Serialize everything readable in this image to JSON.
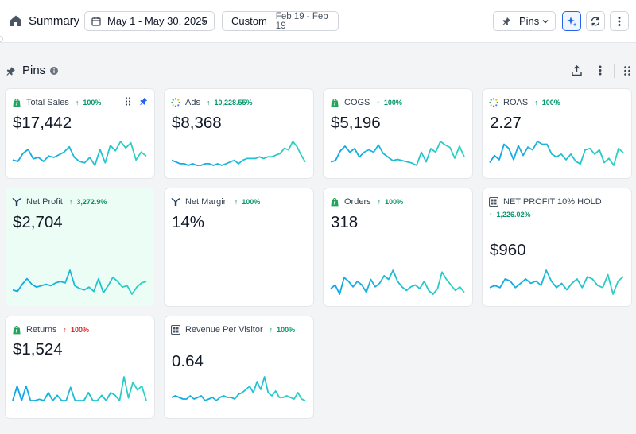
{
  "header": {
    "title": "Summary",
    "date_range": "May 1 - May 30, 2025",
    "compare_label": "Custom",
    "compare_range": "Feb 19 - Feb 19",
    "pins_label": "Pins"
  },
  "section": {
    "title": "Pins"
  },
  "colors": {
    "accent": "#2563eb",
    "up": "#059669",
    "down": "#dc2626",
    "highlight_card": "#ecfdf5",
    "spark_start": "#0ea5e9",
    "spark_end": "#2dd4bf"
  },
  "cards": [
    {
      "id": "total-sales",
      "icon": "shopify-icon",
      "name": "Total Sales",
      "change": "100%",
      "dir": "up",
      "value": "$17,442",
      "highlighted": false,
      "pinned": true,
      "series": [
        10,
        9,
        15,
        18,
        11,
        12,
        9,
        13,
        12,
        14,
        16,
        20,
        12,
        9,
        8,
        12,
        6,
        18,
        8,
        21,
        17,
        24,
        19,
        23,
        10,
        16,
        13
      ]
    },
    {
      "id": "ads",
      "icon": "ads-icon",
      "name": "Ads",
      "change": "10,228.55%",
      "dir": "up",
      "value": "$8,368",
      "highlighted": false,
      "series": [
        12,
        11,
        10,
        10,
        9,
        10,
        9,
        9,
        10,
        10,
        9,
        10,
        9,
        10,
        11,
        12,
        10,
        12,
        13,
        13,
        13,
        14,
        13,
        14,
        14,
        15,
        16,
        19,
        18,
        23,
        20,
        15,
        11
      ]
    },
    {
      "id": "cogs",
      "icon": "shopify-icon",
      "name": "COGS",
      "change": "100%",
      "dir": "up",
      "value": "$5,196",
      "highlighted": false,
      "series": [
        9,
        10,
        18,
        22,
        17,
        20,
        13,
        17,
        19,
        17,
        23,
        16,
        13,
        10,
        11,
        10,
        9,
        8,
        6,
        17,
        9,
        20,
        17,
        26,
        23,
        21,
        12,
        22,
        13
      ]
    },
    {
      "id": "roas",
      "icon": "ads-icon",
      "name": "ROAS",
      "change": "100%",
      "dir": "up",
      "value": "2.27",
      "highlighted": false,
      "series": [
        12,
        17,
        14,
        25,
        22,
        14,
        24,
        17,
        23,
        21,
        27,
        25,
        25,
        18,
        16,
        18,
        14,
        18,
        13,
        11,
        21,
        22,
        18,
        21,
        12,
        15,
        10,
        22,
        19
      ]
    },
    {
      "id": "net-profit",
      "icon": "triple-whale-icon",
      "name": "Net Profit",
      "change": "3,272.9%",
      "dir": "up",
      "value": "$2,704",
      "highlighted": true,
      "series": [
        11,
        10,
        15,
        19,
        15,
        13,
        14,
        15,
        14,
        16,
        17,
        16,
        25,
        14,
        12,
        11,
        13,
        10,
        19,
        9,
        14,
        20,
        17,
        13,
        14,
        8,
        13,
        16,
        17
      ]
    },
    {
      "id": "net-margin",
      "icon": "triple-whale-icon",
      "name": "Net Margin",
      "change": "100%",
      "dir": "up",
      "value": "14%",
      "highlighted": false,
      "series": []
    },
    {
      "id": "orders",
      "icon": "shopify-icon",
      "name": "Orders",
      "change": "100%",
      "dir": "up",
      "value": "318",
      "highlighted": false,
      "series": [
        12,
        14,
        9,
        18,
        16,
        13,
        16,
        14,
        10,
        17,
        13,
        15,
        19,
        17,
        22,
        16,
        13,
        11,
        13,
        14,
        12,
        16,
        11,
        9,
        12,
        21,
        17,
        14,
        11,
        13,
        10
      ]
    },
    {
      "id": "net-profit-hold",
      "icon": "grid-icon",
      "name": "NET PROFIT 10% HOLD",
      "change": "1,226.02%",
      "dir": "up",
      "value": "$960",
      "highlighted": false,
      "series": [
        13,
        14,
        13,
        17,
        16,
        13,
        15,
        17,
        15,
        16,
        14,
        21,
        16,
        13,
        15,
        12,
        15,
        17,
        13,
        18,
        17,
        14,
        13,
        19,
        10,
        16,
        18
      ]
    },
    {
      "id": "returns",
      "icon": "shopify-icon",
      "name": "Returns",
      "change": "100%",
      "dir": "down",
      "value": "$1,524",
      "highlighted": false,
      "series": [
        6,
        17,
        6,
        17,
        6,
        6,
        7,
        6,
        12,
        6,
        10,
        6,
        6,
        16,
        6,
        6,
        6,
        12,
        6,
        6,
        10,
        6,
        12,
        10,
        6,
        24,
        8,
        20,
        14,
        17,
        6
      ]
    },
    {
      "id": "rpv",
      "icon": "grid-icon",
      "name": "Revenue Per Visitor",
      "change": "100%",
      "dir": "up",
      "value": "0.64",
      "highlighted": false,
      "series": [
        9,
        10,
        9,
        8,
        8,
        10,
        8,
        9,
        10,
        7,
        8,
        9,
        7,
        9,
        10,
        9,
        9,
        8,
        11,
        12,
        14,
        16,
        12,
        19,
        14,
        22,
        12,
        10,
        13,
        9,
        9,
        10,
        9,
        8,
        12,
        8,
        7
      ]
    }
  ]
}
